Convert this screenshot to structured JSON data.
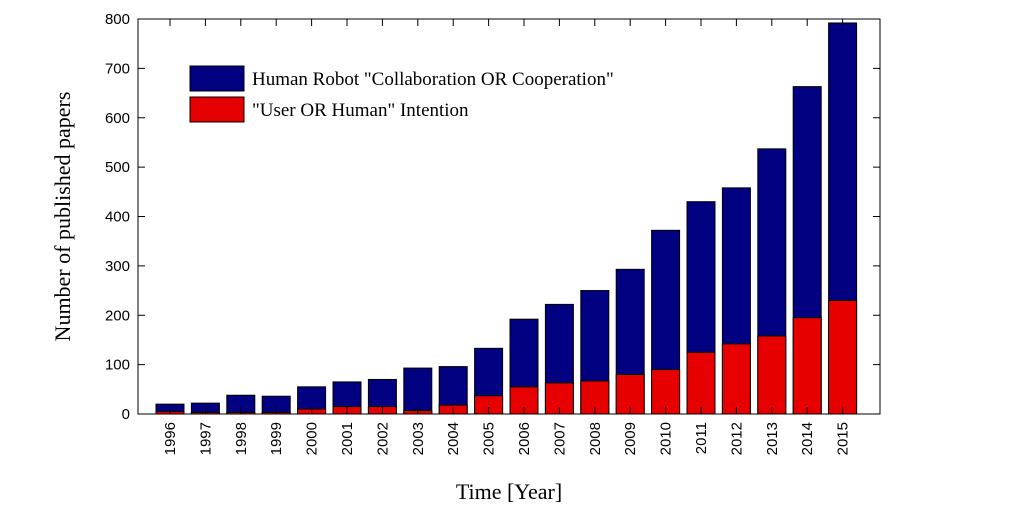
{
  "chart_data": {
    "type": "bar",
    "stacked": false,
    "overlay": true,
    "categories": [
      "1996",
      "1997",
      "1998",
      "1999",
      "2000",
      "2001",
      "2002",
      "2003",
      "2004",
      "2005",
      "2006",
      "2007",
      "2008",
      "2009",
      "2010",
      "2011",
      "2012",
      "2013",
      "2014",
      "2015"
    ],
    "series": [
      {
        "name": "Human Robot \"Collaboration OR Cooperation\"",
        "color": "#000080",
        "values": [
          20,
          22,
          38,
          36,
          55,
          65,
          70,
          93,
          96,
          133,
          192,
          222,
          250,
          293,
          372,
          430,
          458,
          537,
          663,
          792
        ]
      },
      {
        "name": "\"User OR Human\" Intention",
        "color": "#e60000",
        "values": [
          5,
          3,
          3,
          3,
          10,
          15,
          15,
          7,
          18,
          37,
          55,
          63,
          67,
          80,
          90,
          125,
          142,
          158,
          195,
          230
        ]
      }
    ],
    "title": "",
    "xlabel": "Time [Year]",
    "ylabel": "Number of published papers",
    "ylim": [
      0,
      800
    ],
    "yticks": [
      0,
      100,
      200,
      300,
      400,
      500,
      600,
      700,
      800
    ],
    "grid": false,
    "legend_position": "top-left"
  }
}
